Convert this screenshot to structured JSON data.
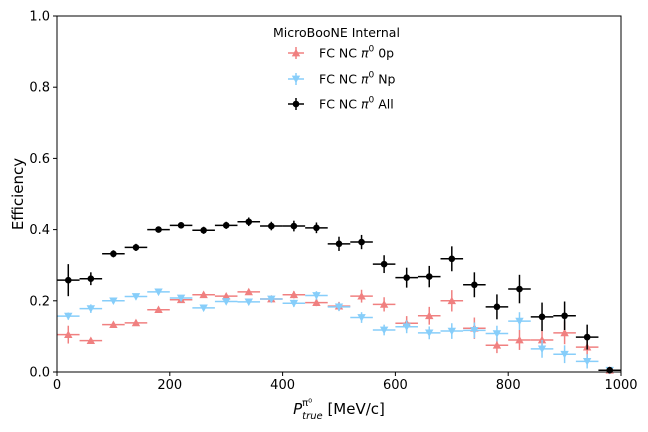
{
  "chart_data": {
    "type": "scatter",
    "title": "",
    "annotation": "MicroBooNE Internal",
    "xlabel_main": "P",
    "xlabel_sup": "π⁰",
    "xlabel_sub": "true",
    "xlabel_unit": " [MeV/c]",
    "ylabel": "Efficiency",
    "xlim": [
      0,
      1000
    ],
    "ylim": [
      0,
      1.0
    ],
    "xticks": [
      0,
      200,
      400,
      600,
      800,
      1000
    ],
    "xtick_labels": [
      "0",
      "200",
      "400",
      "600",
      "800",
      "1000"
    ],
    "yticks": [
      0,
      0.2,
      0.4,
      0.6,
      0.8,
      1.0
    ],
    "ytick_labels": [
      "0.0",
      "0.2",
      "0.4",
      "0.6",
      "0.8",
      "1.0"
    ],
    "grid": false,
    "legend_placement": "top-center",
    "bin_half_width": 20,
    "x": [
      20,
      60,
      100,
      140,
      180,
      220,
      260,
      300,
      340,
      380,
      420,
      460,
      500,
      540,
      580,
      620,
      660,
      700,
      740,
      780,
      820,
      860,
      900,
      940,
      980
    ],
    "series": [
      {
        "name_prefix": "FC NC ",
        "name_sup": "0",
        "name_suffix": " 0p",
        "color": "#f08080",
        "marker": "triangle-up",
        "values": [
          0.105,
          0.088,
          0.133,
          0.138,
          0.175,
          0.203,
          0.217,
          0.213,
          0.225,
          0.205,
          0.217,
          0.195,
          0.185,
          0.213,
          0.19,
          0.137,
          0.158,
          0.2,
          0.123,
          0.075,
          0.09,
          0.09,
          0.11,
          0.07,
          0.005
        ],
        "errors": [
          0.025,
          0.008,
          0.008,
          0.008,
          0.008,
          0.008,
          0.008,
          0.008,
          0.008,
          0.008,
          0.01,
          0.01,
          0.012,
          0.018,
          0.02,
          0.02,
          0.025,
          0.03,
          0.03,
          0.022,
          0.028,
          0.028,
          0.032,
          0.032,
          0.005
        ]
      },
      {
        "name_prefix": "FC NC ",
        "name_sup": "0",
        "name_suffix": " Np",
        "color": "#87cefa",
        "marker": "triangle-down",
        "values": [
          0.157,
          0.178,
          0.2,
          0.212,
          0.225,
          0.208,
          0.18,
          0.198,
          0.197,
          0.205,
          0.193,
          0.215,
          0.183,
          0.153,
          0.118,
          0.127,
          0.11,
          0.115,
          0.117,
          0.108,
          0.143,
          0.065,
          0.05,
          0.03,
          0.005
        ],
        "errors": [
          0.01,
          0.012,
          0.008,
          0.008,
          0.008,
          0.008,
          0.008,
          0.008,
          0.008,
          0.01,
          0.01,
          0.012,
          0.012,
          0.015,
          0.015,
          0.018,
          0.018,
          0.022,
          0.022,
          0.022,
          0.025,
          0.025,
          0.025,
          0.02,
          0.005
        ]
      },
      {
        "name_prefix": "FC NC ",
        "name_sup": "0",
        "name_suffix": " All",
        "color": "#000000",
        "marker": "circle",
        "values": [
          0.258,
          0.262,
          0.332,
          0.35,
          0.4,
          0.412,
          0.398,
          0.412,
          0.422,
          0.41,
          0.41,
          0.405,
          0.36,
          0.365,
          0.303,
          0.265,
          0.268,
          0.318,
          0.245,
          0.183,
          0.233,
          0.155,
          0.158,
          0.098,
          0.005
        ],
        "errors": [
          0.045,
          0.018,
          0.01,
          0.01,
          0.008,
          0.008,
          0.01,
          0.01,
          0.012,
          0.012,
          0.015,
          0.015,
          0.02,
          0.02,
          0.025,
          0.028,
          0.03,
          0.035,
          0.035,
          0.035,
          0.04,
          0.04,
          0.04,
          0.035,
          0.005
        ]
      }
    ]
  }
}
